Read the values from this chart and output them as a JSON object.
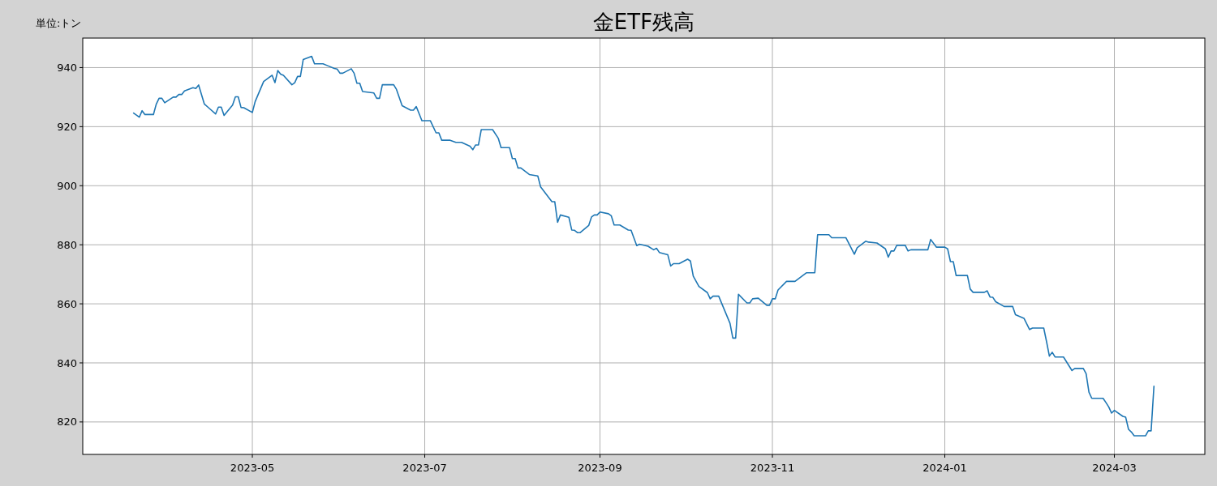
{
  "chart_data": {
    "type": "line",
    "title": "金ETF残高",
    "annotations": [
      "単位:トン"
    ],
    "x": [
      "2023-03-20",
      "2023-03-22",
      "2023-03-23",
      "2023-03-24",
      "2023-03-27",
      "2023-03-28",
      "2023-03-29",
      "2023-03-30",
      "2023-03-31",
      "2023-04-03",
      "2023-04-04",
      "2023-04-05",
      "2023-04-06",
      "2023-04-07",
      "2023-04-10",
      "2023-04-11",
      "2023-04-12",
      "2023-04-14",
      "2023-04-16",
      "2023-04-18",
      "2023-04-19",
      "2023-04-20",
      "2023-04-21",
      "2023-04-24",
      "2023-04-25",
      "2023-04-26",
      "2023-04-27",
      "2023-04-28",
      "2023-05-01",
      "2023-05-02",
      "2023-05-05",
      "2023-05-08",
      "2023-05-09",
      "2023-05-10",
      "2023-05-11",
      "2023-05-12",
      "2023-05-15",
      "2023-05-16",
      "2023-05-17",
      "2023-05-18",
      "2023-05-19",
      "2023-05-22",
      "2023-05-23",
      "2023-05-26",
      "2023-05-28",
      "2023-05-30",
      "2023-05-31",
      "2023-06-01",
      "2023-06-02",
      "2023-06-05",
      "2023-06-06",
      "2023-06-07",
      "2023-06-08",
      "2023-06-09",
      "2023-06-13",
      "2023-06-14",
      "2023-06-15",
      "2023-06-16",
      "2023-06-20",
      "2023-06-21",
      "2023-06-23",
      "2023-06-26",
      "2023-06-27",
      "2023-06-28",
      "2023-06-30",
      "2023-07-03",
      "2023-07-05",
      "2023-07-06",
      "2023-07-07",
      "2023-07-10",
      "2023-07-12",
      "2023-07-14",
      "2023-07-17",
      "2023-07-18",
      "2023-07-19",
      "2023-07-20",
      "2023-07-21",
      "2023-07-25",
      "2023-07-27",
      "2023-07-28",
      "2023-07-31",
      "2023-08-01",
      "2023-08-02",
      "2023-08-03",
      "2023-08-04",
      "2023-08-07",
      "2023-08-10",
      "2023-08-11",
      "2023-08-15",
      "2023-08-16",
      "2023-08-17",
      "2023-08-18",
      "2023-08-21",
      "2023-08-22",
      "2023-08-23",
      "2023-08-24",
      "2023-08-25",
      "2023-08-28",
      "2023-08-29",
      "2023-08-30",
      "2023-08-31",
      "2023-09-01",
      "2023-09-04",
      "2023-09-05",
      "2023-09-06",
      "2023-09-08",
      "2023-09-11",
      "2023-09-12",
      "2023-09-14",
      "2023-09-15",
      "2023-09-18",
      "2023-09-20",
      "2023-09-21",
      "2023-09-22",
      "2023-09-25",
      "2023-09-26",
      "2023-09-27",
      "2023-09-29",
      "2023-10-02",
      "2023-10-03",
      "2023-10-04",
      "2023-10-06",
      "2023-10-09",
      "2023-10-10",
      "2023-10-11",
      "2023-10-13",
      "2023-10-17",
      "2023-10-18",
      "2023-10-19",
      "2023-10-20",
      "2023-10-23",
      "2023-10-24",
      "2023-10-25",
      "2023-10-27",
      "2023-10-30",
      "2023-10-31",
      "2023-11-01",
      "2023-11-02",
      "2023-11-03",
      "2023-11-06",
      "2023-11-09",
      "2023-11-13",
      "2023-11-16",
      "2023-11-17",
      "2023-11-21",
      "2023-11-22",
      "2023-11-27",
      "2023-11-30",
      "2023-12-01",
      "2023-12-04",
      "2023-12-05",
      "2023-12-08",
      "2023-12-11",
      "2023-12-12",
      "2023-12-13",
      "2023-12-14",
      "2023-12-15",
      "2023-12-18",
      "2023-12-19",
      "2023-12-20",
      "2023-12-26",
      "2023-12-27",
      "2023-12-29",
      "2024-01-01",
      "2024-01-02",
      "2024-01-03",
      "2024-01-04",
      "2024-01-05",
      "2024-01-09",
      "2024-01-10",
      "2024-01-11",
      "2024-01-15",
      "2024-01-16",
      "2024-01-17",
      "2024-01-18",
      "2024-01-19",
      "2024-01-22",
      "2024-01-25",
      "2024-01-26",
      "2024-01-29",
      "2024-01-31",
      "2024-02-01",
      "2024-02-05",
      "2024-02-06",
      "2024-02-07",
      "2024-02-08",
      "2024-02-09",
      "2024-02-12",
      "2024-02-15",
      "2024-02-16",
      "2024-02-19",
      "2024-02-20",
      "2024-02-21",
      "2024-02-22",
      "2024-02-26",
      "2024-02-27",
      "2024-02-28",
      "2024-02-29",
      "2024-03-01",
      "2024-03-04",
      "2024-03-05",
      "2024-03-06",
      "2024-03-07",
      "2024-03-08",
      "2024-03-12",
      "2024-03-13",
      "2024-03-14",
      "2024-03-15"
    ],
    "series": [
      {
        "color": "#1f77b4",
        "values": [
          924.6,
          923.2,
          925.4,
          924.1,
          924.1,
          927.6,
          929.6,
          929.6,
          928.1,
          930.0,
          930.0,
          930.9,
          930.9,
          932.1,
          933.2,
          932.9,
          934.1,
          927.7,
          926.0,
          924.3,
          926.6,
          926.6,
          923.8,
          927.3,
          930.1,
          930.1,
          926.5,
          926.4,
          924.8,
          928.5,
          935.3,
          937.4,
          934.9,
          939.0,
          937.8,
          937.4,
          934.2,
          934.9,
          937.0,
          937.0,
          942.7,
          943.8,
          941.3,
          941.3,
          940.5,
          939.7,
          939.5,
          938.1,
          938.1,
          939.6,
          938.1,
          934.7,
          934.7,
          931.9,
          931.4,
          929.6,
          929.6,
          934.2,
          934.2,
          932.6,
          927.1,
          925.6,
          925.6,
          926.8,
          922.0,
          922.0,
          917.9,
          917.9,
          915.4,
          915.4,
          914.7,
          914.7,
          913.4,
          912.2,
          913.8,
          913.8,
          919.0,
          919.0,
          916.1,
          912.9,
          912.9,
          909.2,
          909.2,
          906.0,
          906.0,
          903.8,
          903.3,
          899.6,
          894.6,
          894.6,
          887.6,
          890.1,
          889.3,
          885.0,
          884.9,
          884.1,
          884.1,
          886.5,
          889.4,
          890.1,
          890.1,
          891.1,
          890.5,
          889.8,
          886.7,
          886.7,
          885.0,
          884.9,
          879.7,
          880.2,
          879.5,
          878.3,
          878.8,
          877.4,
          876.6,
          872.8,
          873.6,
          873.6,
          875.1,
          874.5,
          869.4,
          865.9,
          863.8,
          861.7,
          862.6,
          862.6,
          853.4,
          848.4,
          848.4,
          863.2,
          860.3,
          860.3,
          861.7,
          861.9,
          859.5,
          859.5,
          861.7,
          861.7,
          864.7,
          867.6,
          867.6,
          870.5,
          870.5,
          883.4,
          883.4,
          882.4,
          882.4,
          876.8,
          879.0,
          881.2,
          880.9,
          880.6,
          878.6,
          875.8,
          877.9,
          877.9,
          879.8,
          879.8,
          877.9,
          878.3,
          878.3,
          881.8,
          879.2,
          879.2,
          878.6,
          874.3,
          874.3,
          869.6,
          869.6,
          865.0,
          863.9,
          863.9,
          864.4,
          862.3,
          862.2,
          860.7,
          859.1,
          859.1,
          856.3,
          855.1,
          851.3,
          851.8,
          851.8,
          847.2,
          842.3,
          843.6,
          842.0,
          842.0,
          837.4,
          838.1,
          838.1,
          836.3,
          830.1,
          828.0,
          828.0,
          826.6,
          825.1,
          823.0,
          823.9,
          821.9,
          821.6,
          817.5,
          816.6,
          815.3,
          815.3,
          817.0,
          817.0,
          832.1
        ]
      }
    ],
    "xlim": [
      "2023-03-02",
      "2024-04-02"
    ],
    "xticks": [
      "2023-05",
      "2023-07",
      "2023-09",
      "2023-11",
      "2024-01",
      "2024-03"
    ],
    "ylim": [
      809,
      950
    ],
    "yticks": [
      820,
      840,
      860,
      880,
      900,
      920,
      940
    ],
    "grid": true,
    "line_style": "solid",
    "marker": "none"
  }
}
